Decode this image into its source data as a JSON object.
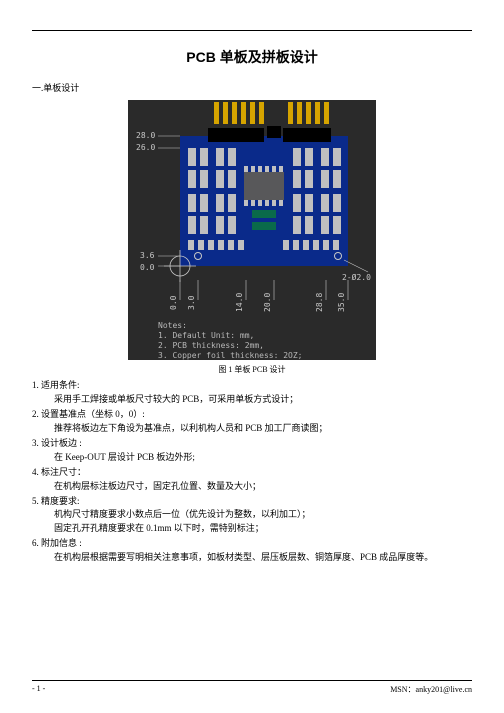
{
  "title": "PCB 单板及拼板设计",
  "section_heading": "一.单板设计",
  "figure": {
    "caption": "图 1  单板 PCB 设计",
    "bg_color": "#2a2a2a",
    "board_color": "#0a2a8a",
    "pad_color": "#c0c0c0",
    "pin_color": "#d6a400",
    "label_color": "#c8c8c8",
    "note_color": "#b8b8b8",
    "dim_top1": "28.0",
    "dim_top2": "26.0",
    "dim_left1": "3.6",
    "dim_left2": "0.0",
    "dim_b1": "0.0",
    "dim_b2": "3.0",
    "dim_b3": "14.0",
    "dim_b4": "20.0",
    "dim_b5": "28.8",
    "dim_b6": "35.0",
    "hole_label": "2-Ø2.0",
    "notes_title": "Notes:",
    "note1": "1. Default Unit: mm,",
    "note2": "2. PCB thickness: 2mm,",
    "note3": "3. Copper foil thickness: 2OZ;"
  },
  "list": [
    {
      "num": "1.",
      "head": "适用条件:",
      "body": "采用手工焊接或单板尺寸较大的 PCB，可采用单板方式设计；"
    },
    {
      "num": "2.",
      "head": "设置基准点（坐标 0，0）:",
      "body": "推荐将板边左下角设为基准点，以利机构人员和 PCB 加工厂商读图；"
    },
    {
      "num": "3.",
      "head": "设计板边 :",
      "body": "在 Keep-OUT 层设计 PCB 板边外形;"
    },
    {
      "num": "4.",
      "head": "标注尺寸：",
      "body": "在机构层标注板边尺寸，固定孔位置、数量及大小；"
    },
    {
      "num": "5.",
      "head": "精度要求:",
      "body": "机构尺寸精度要求小数点后一位（优先设计为整数，以利加工）；",
      "body2": "固定孔开孔精度要求在 0.1mm 以下时，需特别标注；"
    },
    {
      "num": "6.",
      "head": "附加信息 :",
      "body": "在机构层根据需要写明相关注意事项，如板材类型、层压板层数、铜箔厚度、PCB 成品厚度等。"
    }
  ],
  "footer": {
    "page": "- 1 -",
    "contact": "MSN：anky201@live.cn"
  }
}
